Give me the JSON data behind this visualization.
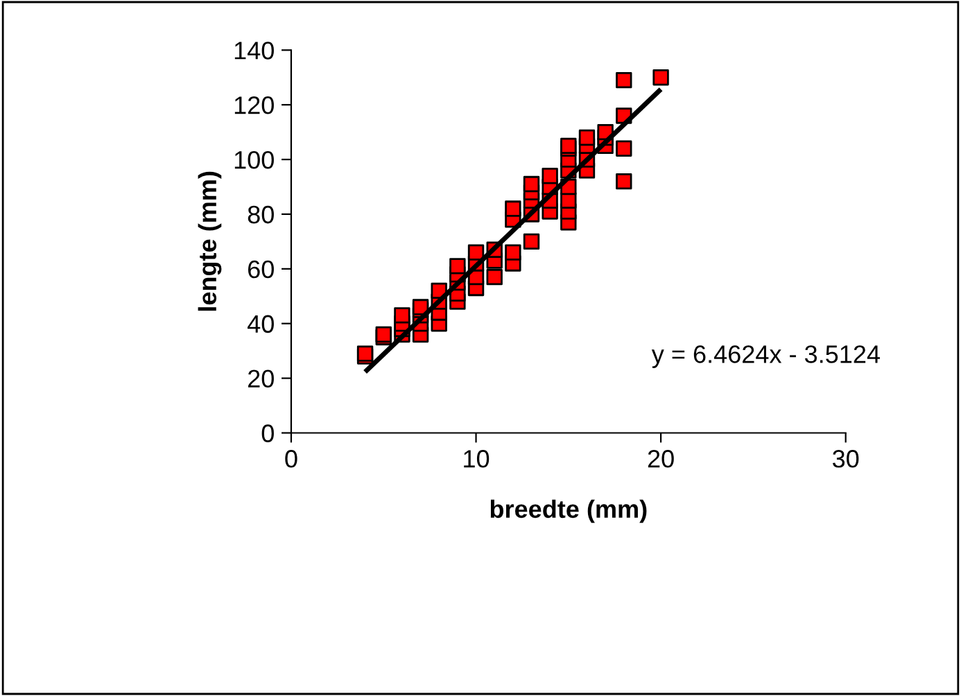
{
  "chart_data": {
    "type": "scatter",
    "xlabel": "breedte (mm)",
    "ylabel": "lengte (mm)",
    "xlim": [
      0,
      30
    ],
    "xticks": [
      0,
      10,
      20,
      30
    ],
    "ylim": [
      0,
      140
    ],
    "yticks": [
      0,
      20,
      40,
      60,
      80,
      100,
      120,
      140
    ],
    "grid": false,
    "legend": false,
    "series": [
      {
        "marker": "square",
        "color": "#ff0000",
        "x": [
          4,
          4,
          5,
          5,
          6,
          6,
          6,
          6,
          7,
          7,
          7,
          7,
          7,
          8,
          8,
          8,
          8,
          9,
          9,
          9,
          9,
          9,
          10,
          10,
          10,
          10,
          11,
          11,
          11,
          12,
          12,
          12,
          12,
          13,
          13,
          13,
          13,
          13,
          14,
          14,
          14,
          14,
          15,
          15,
          15,
          15,
          15,
          15,
          15,
          15,
          16,
          16,
          16,
          16,
          17,
          17,
          17,
          18,
          18,
          18,
          18,
          20
        ],
        "values": [
          28,
          29,
          35,
          36,
          36,
          38,
          40,
          43,
          36,
          40,
          43,
          45,
          46,
          40,
          44,
          48,
          52,
          48,
          51,
          55,
          58,
          61,
          53,
          57,
          62,
          66,
          57,
          63,
          67,
          62,
          66,
          78,
          82,
          70,
          80,
          85,
          88,
          91,
          81,
          85,
          90,
          94,
          77,
          81,
          85,
          90,
          96,
          100,
          104,
          105,
          96,
          100,
          105,
          108,
          105,
          108,
          110,
          92,
          104,
          116,
          129,
          130
        ]
      },
      {
        "type": "line",
        "color": "#000000",
        "x": [
          4,
          20
        ],
        "values": [
          22.3,
          125.7
        ]
      }
    ],
    "annotations": [
      "y = 6.4624x - 3.5124"
    ]
  }
}
